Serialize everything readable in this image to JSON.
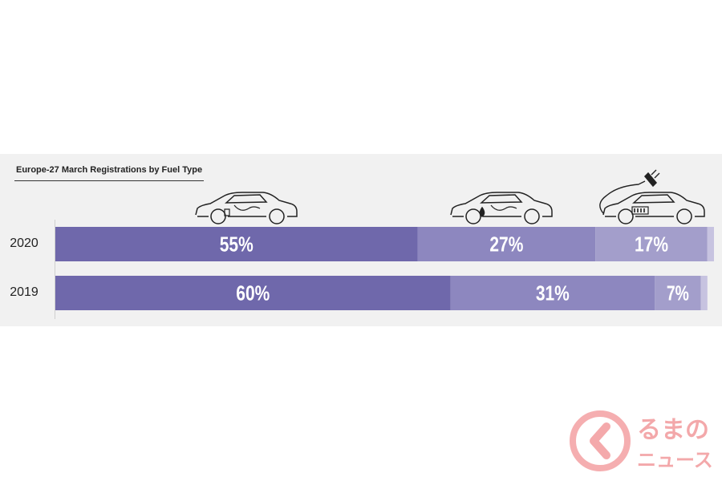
{
  "chart_data": {
    "type": "bar",
    "stacked": true,
    "orientation": "horizontal",
    "title": "Europe-27 March Registrations by Fuel Type",
    "categories": [
      "2020",
      "2019"
    ],
    "series": [
      {
        "values": [
          55,
          60
        ],
        "labels": [
          "55%",
          "60%"
        ],
        "color": "#6f68ab"
      },
      {
        "values": [
          27,
          31
        ],
        "labels": [
          "27%",
          "31%"
        ],
        "color": "#8d87bf"
      },
      {
        "values": [
          17,
          7
        ],
        "labels": [
          "17%",
          "7%"
        ],
        "color": "#a39ecb"
      },
      {
        "values": [
          1,
          1
        ],
        "labels": [
          "",
          ""
        ],
        "color": "#c7c3e0"
      }
    ],
    "xlim": [
      0,
      100
    ],
    "grid": false,
    "legend": "none"
  },
  "icons": [
    "petrol-car-icon",
    "diesel-car-icon",
    "electric-car-icon"
  ],
  "watermark": {
    "line1": "るまの",
    "line2": "ニュース",
    "color": "#e8252a"
  }
}
